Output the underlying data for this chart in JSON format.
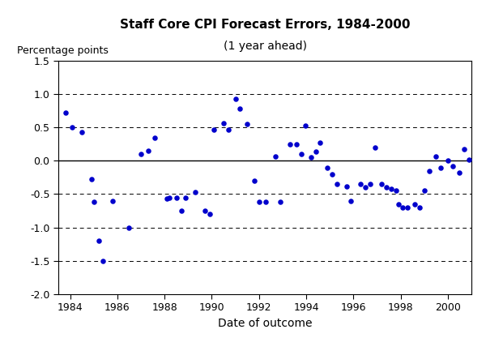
{
  "title_line1": "Staff Core CPI Forecast Errors, 1984-2000",
  "title_line2": "(1 year ahead)",
  "xlabel": "Date of outcome",
  "ylabel": "Percentage points",
  "xlim": [
    1983.5,
    2001.0
  ],
  "ylim": [
    -2.0,
    1.5
  ],
  "yticks": [
    -2.0,
    -1.5,
    -1.0,
    -0.5,
    0.0,
    0.5,
    1.0,
    1.5
  ],
  "xticks": [
    1984,
    1986,
    1988,
    1990,
    1992,
    1994,
    1996,
    1998,
    2000
  ],
  "grid_y": [
    -1.5,
    -1.0,
    -0.5,
    0.5,
    1.0,
    1.5
  ],
  "dot_color": "#0000CC",
  "background_color": "#ffffff",
  "data_x": [
    1983.8,
    1984.1,
    1984.5,
    1984.9,
    1985.0,
    1985.2,
    1985.4,
    1985.8,
    1986.5,
    1987.0,
    1987.3,
    1987.6,
    1988.1,
    1988.2,
    1988.5,
    1988.7,
    1988.9,
    1989.3,
    1989.7,
    1989.9,
    1990.1,
    1990.5,
    1990.7,
    1991.0,
    1991.2,
    1991.5,
    1991.8,
    1992.0,
    1992.3,
    1992.7,
    1992.9,
    1993.3,
    1993.6,
    1993.8,
    1993.95,
    1994.2,
    1994.4,
    1994.6,
    1994.9,
    1995.1,
    1995.3,
    1995.7,
    1995.9,
    1996.3,
    1996.5,
    1996.7,
    1996.9,
    1997.2,
    1997.4,
    1997.6,
    1997.8,
    1997.9,
    1998.1,
    1998.3,
    1998.6,
    1998.8,
    1999.0,
    1999.2,
    1999.5,
    1999.7,
    2000.0,
    2000.2,
    2000.5,
    2000.7,
    2000.9
  ],
  "data_y": [
    0.72,
    0.5,
    0.43,
    -0.28,
    -0.62,
    -1.2,
    -1.5,
    -0.6,
    -1.0,
    0.1,
    0.15,
    0.34,
    -0.57,
    -0.56,
    -0.56,
    -0.75,
    -0.56,
    -0.47,
    -0.75,
    -0.8,
    0.47,
    0.56,
    0.47,
    0.93,
    0.78,
    0.55,
    -0.3,
    -0.62,
    -0.62,
    0.06,
    -0.62,
    0.25,
    0.25,
    0.1,
    0.53,
    0.05,
    0.14,
    0.27,
    -0.1,
    -0.2,
    -0.35,
    -0.38,
    -0.6,
    -0.35,
    -0.4,
    -0.35,
    0.2,
    -0.35,
    -0.4,
    -0.42,
    -0.45,
    -0.65,
    -0.7,
    -0.7,
    -0.65,
    -0.7,
    -0.45,
    -0.15,
    0.06,
    -0.1,
    0.0,
    -0.08,
    -0.18,
    0.18,
    0.02
  ]
}
